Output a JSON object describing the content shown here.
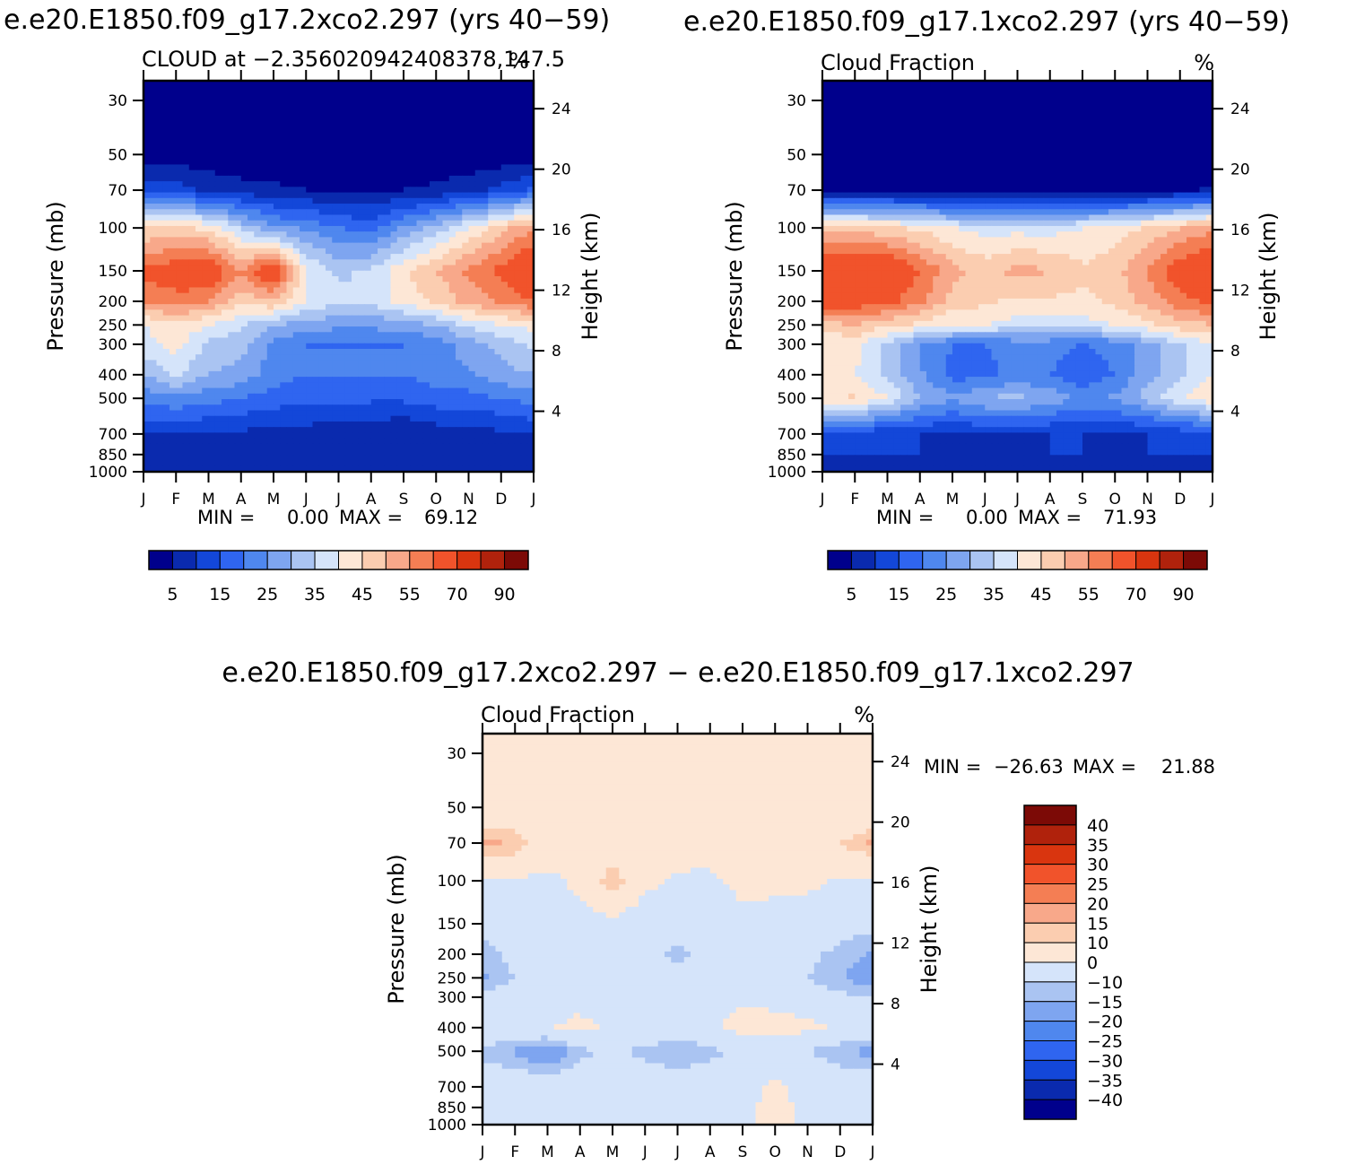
{
  "colors": {
    "positive_scale": [
      "#00008c",
      "#0a2aae",
      "#1347d9",
      "#2f65f0",
      "#4f87ee",
      "#7ea5f0",
      "#aac4f2",
      "#d5e4fa",
      "#fde7d6",
      "#fbcdb0",
      "#f8a88a",
      "#f47e54",
      "#f1532b",
      "#d9350f",
      "#b0220c",
      "#7c0a06"
    ],
    "diff_scale": [
      "#00008c",
      "#0a2aae",
      "#1347d9",
      "#2f65f0",
      "#4f87ee",
      "#7ea5f0",
      "#aac4f2",
      "#d5e4fa",
      "#fde7d6",
      "#fbcdb0",
      "#f8a88a",
      "#f47e54",
      "#f1532b",
      "#d9350f",
      "#b0220c",
      "#7c0a06"
    ]
  },
  "panel_a": {
    "title": "e.e20.E1850.f09_g17.2xco2.297 (yrs 40−59)",
    "left_label": "CLOUD at −2.356020942408378,147.5",
    "right_label": "%",
    "stats": {
      "min_label": "MIN =",
      "min_value": "0.00",
      "max_label": "MAX =",
      "max_value": "69.12"
    }
  },
  "panel_b": {
    "title": "e.e20.E1850.f09_g17.1xco2.297 (yrs 40−59)",
    "left_label": "Cloud Fraction",
    "right_label": "%",
    "stats": {
      "min_label": "MIN =",
      "min_value": "0.00",
      "max_label": "MAX =",
      "max_value": "71.93"
    }
  },
  "panel_c": {
    "title": "e.e20.E1850.f09_g17.2xco2.297 − e.e20.E1850.f09_g17.1xco2.297",
    "left_label": "Cloud Fraction",
    "right_label": "%",
    "stats": {
      "min_label": "MIN =",
      "min_value": "−26.63",
      "max_label": "MAX =",
      "max_value": "21.88"
    }
  },
  "axes": {
    "ylabel_left": "Pressure (mb)",
    "ylabel_right": "Height (km)",
    "pressure_ticks": [
      "30",
      "50",
      "70",
      "100",
      "150",
      "200",
      "250",
      "300",
      "400",
      "500",
      "700",
      "850",
      "1000"
    ],
    "height_ticks": [
      "24",
      "20",
      "16",
      "12",
      "8",
      "4"
    ],
    "month_ticks": [
      "J",
      "F",
      "M",
      "A",
      "M",
      "J",
      "J",
      "A",
      "S",
      "O",
      "N",
      "D",
      "J"
    ]
  },
  "colorbars": {
    "cloud_labels": [
      "5",
      "15",
      "25",
      "35",
      "45",
      "55",
      "70",
      "90"
    ],
    "diff_labels": [
      "40",
      "35",
      "30",
      "25",
      "20",
      "15",
      "10",
      "0",
      "−10",
      "−15",
      "−20",
      "−25",
      "−30",
      "−35",
      "−40"
    ]
  },
  "chart_data": [
    {
      "type": "heatmap",
      "title": "e.e20.E1850.f09_g17.2xco2.297 (yrs 40−59)",
      "subtitle": "CLOUD at −2.356020942408378,147.5",
      "units": "%",
      "xlabel": "",
      "ylabel": "Pressure (mb)",
      "ylabel_right": "Height (km)",
      "x": [
        "J",
        "F",
        "M",
        "A",
        "M",
        "J",
        "J",
        "A",
        "S",
        "O",
        "N",
        "D",
        "J"
      ],
      "y": [
        30,
        50,
        70,
        100,
        150,
        200,
        250,
        300,
        400,
        500,
        700,
        850,
        1000
      ],
      "y_scale": "log (pressure, inverted)",
      "values": [
        [
          1,
          1,
          1,
          1,
          1,
          1,
          1,
          1,
          1,
          1,
          1,
          1,
          1
        ],
        [
          2,
          2,
          1,
          1,
          1,
          1,
          1,
          1,
          1,
          1,
          1,
          1,
          2
        ],
        [
          14,
          12,
          9,
          7,
          6,
          5,
          4,
          4,
          5,
          6,
          8,
          12,
          16
        ],
        [
          45,
          46,
          44,
          34,
          26,
          24,
          20,
          18,
          26,
          32,
          40,
          48,
          55
        ],
        [
          62,
          64,
          66,
          55,
          68,
          40,
          34,
          36,
          44,
          50,
          56,
          62,
          68
        ],
        [
          56,
          58,
          56,
          46,
          50,
          40,
          36,
          36,
          42,
          46,
          52,
          56,
          60
        ],
        [
          40,
          44,
          40,
          36,
          30,
          28,
          26,
          26,
          28,
          30,
          36,
          40,
          42
        ],
        [
          38,
          42,
          34,
          32,
          24,
          20,
          20,
          20,
          20,
          22,
          28,
          32,
          36
        ],
        [
          30,
          36,
          30,
          28,
          22,
          20,
          20,
          20,
          20,
          22,
          24,
          28,
          30
        ],
        [
          22,
          24,
          22,
          20,
          18,
          16,
          16,
          16,
          16,
          18,
          18,
          20,
          22
        ],
        [
          10,
          10,
          9,
          9,
          8,
          8,
          7,
          6,
          5,
          7,
          8,
          9,
          10
        ],
        [
          9,
          9,
          9,
          8,
          8,
          8,
          7,
          7,
          7,
          8,
          8,
          9,
          9
        ],
        [
          8,
          8,
          8,
          8,
          8,
          8,
          8,
          8,
          8,
          8,
          8,
          8,
          8
        ]
      ],
      "levels": [
        5,
        10,
        15,
        20,
        25,
        30,
        35,
        40,
        45,
        50,
        55,
        60,
        70,
        80,
        90
      ],
      "min": 0.0,
      "max": 69.12
    },
    {
      "type": "heatmap",
      "title": "e.e20.E1850.f09_g17.1xco2.297 (yrs 40−59)",
      "subtitle": "Cloud Fraction",
      "units": "%",
      "xlabel": "",
      "ylabel": "Pressure (mb)",
      "ylabel_right": "Height (km)",
      "x": [
        "J",
        "F",
        "M",
        "A",
        "M",
        "J",
        "J",
        "A",
        "S",
        "O",
        "N",
        "D",
        "J"
      ],
      "y": [
        30,
        50,
        70,
        100,
        150,
        200,
        250,
        300,
        400,
        500,
        700,
        850,
        1000
      ],
      "y_scale": "log (pressure, inverted)",
      "values": [
        [
          1,
          1,
          1,
          1,
          1,
          1,
          1,
          1,
          1,
          1,
          1,
          1,
          1
        ],
        [
          1,
          1,
          1,
          1,
          1,
          1,
          1,
          1,
          1,
          1,
          1,
          1,
          1
        ],
        [
          4,
          3,
          3,
          3,
          2,
          2,
          2,
          2,
          2,
          2,
          3,
          4,
          6
        ],
        [
          48,
          48,
          46,
          44,
          40,
          38,
          38,
          38,
          40,
          42,
          46,
          50,
          54
        ],
        [
          70,
          70,
          68,
          60,
          52,
          48,
          52,
          50,
          46,
          48,
          56,
          64,
          68
        ],
        [
          64,
          64,
          62,
          56,
          48,
          46,
          44,
          44,
          44,
          46,
          52,
          58,
          62
        ],
        [
          48,
          50,
          46,
          44,
          40,
          40,
          38,
          38,
          38,
          40,
          44,
          48,
          50
        ],
        [
          40,
          42,
          34,
          24,
          20,
          20,
          22,
          22,
          20,
          22,
          28,
          34,
          40
        ],
        [
          42,
          40,
          34,
          26,
          18,
          18,
          22,
          20,
          16,
          20,
          28,
          34,
          40
        ],
        [
          44,
          46,
          40,
          30,
          26,
          30,
          32,
          28,
          24,
          26,
          32,
          40,
          44
        ],
        [
          12,
          12,
          11,
          10,
          10,
          10,
          10,
          10,
          10,
          9,
          10,
          12,
          12
        ],
        [
          10,
          10,
          10,
          10,
          8,
          10,
          9,
          10,
          10,
          8,
          10,
          10,
          10
        ],
        [
          8,
          8,
          8,
          8,
          8,
          8,
          8,
          8,
          8,
          6,
          8,
          8,
          8
        ]
      ],
      "levels": [
        5,
        10,
        15,
        20,
        25,
        30,
        35,
        40,
        45,
        50,
        55,
        60,
        70,
        80,
        90
      ],
      "min": 0.0,
      "max": 71.93
    },
    {
      "type": "heatmap",
      "title": "e.e20.E1850.f09_g17.2xco2.297 − e.e20.E1850.f09_g17.1xco2.297",
      "subtitle": "Cloud Fraction",
      "units": "%",
      "xlabel": "",
      "ylabel": "Pressure (mb)",
      "ylabel_right": "Height (km)",
      "x": [
        "J",
        "F",
        "M",
        "A",
        "M",
        "J",
        "J",
        "A",
        "S",
        "O",
        "N",
        "D",
        "J"
      ],
      "y": [
        30,
        50,
        70,
        100,
        150,
        200,
        250,
        300,
        400,
        500,
        700,
        850,
        1000
      ],
      "y_scale": "log (pressure, inverted)",
      "values": [
        [
          0.5,
          0.5,
          0.5,
          0.5,
          0.5,
          0.5,
          0.5,
          0.5,
          0.5,
          0.5,
          0.5,
          0.5,
          0.5
        ],
        [
          1,
          1,
          1,
          1,
          1,
          1,
          1,
          1,
          1,
          1,
          1,
          1,
          1
        ],
        [
          18,
          14,
          6,
          4,
          4,
          3,
          3,
          2,
          3,
          4,
          6,
          10,
          16
        ],
        [
          -2,
          -1,
          -2,
          2,
          14,
          2,
          -1,
          -1,
          2,
          2,
          2,
          -1,
          -2
        ],
        [
          -8,
          -6,
          -4,
          -4,
          -3,
          -5,
          -6,
          -5,
          -2,
          -3,
          -5,
          -6,
          -8
        ],
        [
          -12,
          -8,
          -6,
          -6,
          -4,
          -8,
          -12,
          -6,
          -4,
          -6,
          -8,
          -12,
          -16
        ],
        [
          -16,
          -10,
          -8,
          -8,
          -6,
          -6,
          -8,
          -6,
          -4,
          -6,
          -10,
          -14,
          -20
        ],
        [
          -8,
          -6,
          -4,
          -4,
          -4,
          -4,
          -4,
          -4,
          -2,
          -4,
          -6,
          -8,
          -10
        ],
        [
          -2,
          -2,
          -1,
          3,
          -2,
          -2,
          -2,
          -2,
          4,
          5,
          2,
          -1,
          -2
        ],
        [
          -12,
          -16,
          -22,
          -12,
          -8,
          -12,
          -16,
          -12,
          -8,
          -6,
          -10,
          -14,
          -18
        ],
        [
          -4,
          -4,
          -4,
          -4,
          -4,
          -4,
          -4,
          -4,
          -4,
          2,
          -4,
          -4,
          -4
        ],
        [
          -3,
          -3,
          -3,
          -3,
          -3,
          -3,
          -3,
          -3,
          -3,
          4,
          -3,
          -3,
          -3
        ],
        [
          -2,
          -2,
          -2,
          -2,
          -2,
          -2,
          -2,
          -2,
          -2,
          3,
          -2,
          -2,
          -2
        ]
      ],
      "levels": [
        -40,
        -35,
        -30,
        -25,
        -20,
        -15,
        -10,
        0,
        10,
        15,
        20,
        25,
        30,
        35,
        40
      ],
      "min": -26.63,
      "max": 21.88
    }
  ]
}
